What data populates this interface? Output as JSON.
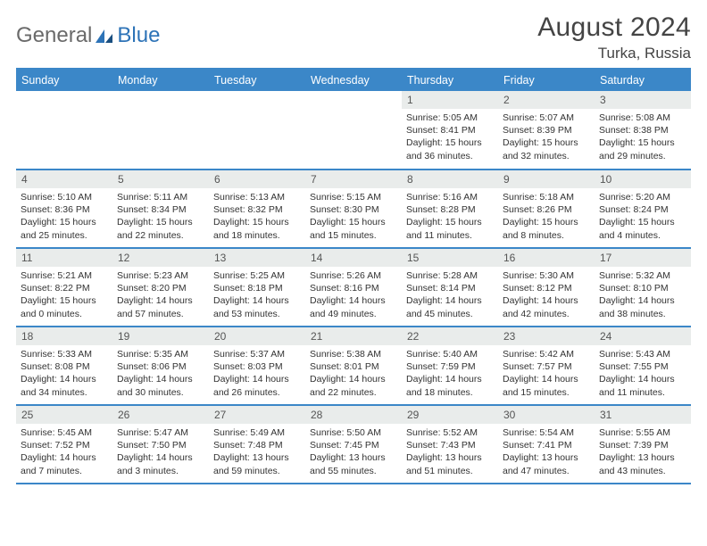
{
  "logo": {
    "text_gen": "General",
    "text_blue": "Blue"
  },
  "header": {
    "title": "August 2024",
    "location": "Turka, Russia"
  },
  "style": {
    "accent_color": "#3b87c8",
    "daybar_bg": "#e9eceb",
    "page_bg": "#ffffff",
    "text_color": "#333333",
    "title_fontsize": 30,
    "location_fontsize": 17,
    "header_fontsize": 12.5,
    "daynum_fontsize": 12,
    "body_fontsize": 10.5
  },
  "weekdays": [
    "Sunday",
    "Monday",
    "Tuesday",
    "Wednesday",
    "Thursday",
    "Friday",
    "Saturday"
  ],
  "weeks": [
    [
      {
        "empty": true
      },
      {
        "empty": true
      },
      {
        "empty": true
      },
      {
        "empty": true
      },
      {
        "num": "1",
        "sunrise": "5:05 AM",
        "sunset": "8:41 PM",
        "daylight": "15 hours and 36 minutes."
      },
      {
        "num": "2",
        "sunrise": "5:07 AM",
        "sunset": "8:39 PM",
        "daylight": "15 hours and 32 minutes."
      },
      {
        "num": "3",
        "sunrise": "5:08 AM",
        "sunset": "8:38 PM",
        "daylight": "15 hours and 29 minutes."
      }
    ],
    [
      {
        "num": "4",
        "sunrise": "5:10 AM",
        "sunset": "8:36 PM",
        "daylight": "15 hours and 25 minutes."
      },
      {
        "num": "5",
        "sunrise": "5:11 AM",
        "sunset": "8:34 PM",
        "daylight": "15 hours and 22 minutes."
      },
      {
        "num": "6",
        "sunrise": "5:13 AM",
        "sunset": "8:32 PM",
        "daylight": "15 hours and 18 minutes."
      },
      {
        "num": "7",
        "sunrise": "5:15 AM",
        "sunset": "8:30 PM",
        "daylight": "15 hours and 15 minutes."
      },
      {
        "num": "8",
        "sunrise": "5:16 AM",
        "sunset": "8:28 PM",
        "daylight": "15 hours and 11 minutes."
      },
      {
        "num": "9",
        "sunrise": "5:18 AM",
        "sunset": "8:26 PM",
        "daylight": "15 hours and 8 minutes."
      },
      {
        "num": "10",
        "sunrise": "5:20 AM",
        "sunset": "8:24 PM",
        "daylight": "15 hours and 4 minutes."
      }
    ],
    [
      {
        "num": "11",
        "sunrise": "5:21 AM",
        "sunset": "8:22 PM",
        "daylight": "15 hours and 0 minutes."
      },
      {
        "num": "12",
        "sunrise": "5:23 AM",
        "sunset": "8:20 PM",
        "daylight": "14 hours and 57 minutes."
      },
      {
        "num": "13",
        "sunrise": "5:25 AM",
        "sunset": "8:18 PM",
        "daylight": "14 hours and 53 minutes."
      },
      {
        "num": "14",
        "sunrise": "5:26 AM",
        "sunset": "8:16 PM",
        "daylight": "14 hours and 49 minutes."
      },
      {
        "num": "15",
        "sunrise": "5:28 AM",
        "sunset": "8:14 PM",
        "daylight": "14 hours and 45 minutes."
      },
      {
        "num": "16",
        "sunrise": "5:30 AM",
        "sunset": "8:12 PM",
        "daylight": "14 hours and 42 minutes."
      },
      {
        "num": "17",
        "sunrise": "5:32 AM",
        "sunset": "8:10 PM",
        "daylight": "14 hours and 38 minutes."
      }
    ],
    [
      {
        "num": "18",
        "sunrise": "5:33 AM",
        "sunset": "8:08 PM",
        "daylight": "14 hours and 34 minutes."
      },
      {
        "num": "19",
        "sunrise": "5:35 AM",
        "sunset": "8:06 PM",
        "daylight": "14 hours and 30 minutes."
      },
      {
        "num": "20",
        "sunrise": "5:37 AM",
        "sunset": "8:03 PM",
        "daylight": "14 hours and 26 minutes."
      },
      {
        "num": "21",
        "sunrise": "5:38 AM",
        "sunset": "8:01 PM",
        "daylight": "14 hours and 22 minutes."
      },
      {
        "num": "22",
        "sunrise": "5:40 AM",
        "sunset": "7:59 PM",
        "daylight": "14 hours and 18 minutes."
      },
      {
        "num": "23",
        "sunrise": "5:42 AM",
        "sunset": "7:57 PM",
        "daylight": "14 hours and 15 minutes."
      },
      {
        "num": "24",
        "sunrise": "5:43 AM",
        "sunset": "7:55 PM",
        "daylight": "14 hours and 11 minutes."
      }
    ],
    [
      {
        "num": "25",
        "sunrise": "5:45 AM",
        "sunset": "7:52 PM",
        "daylight": "14 hours and 7 minutes."
      },
      {
        "num": "26",
        "sunrise": "5:47 AM",
        "sunset": "7:50 PM",
        "daylight": "14 hours and 3 minutes."
      },
      {
        "num": "27",
        "sunrise": "5:49 AM",
        "sunset": "7:48 PM",
        "daylight": "13 hours and 59 minutes."
      },
      {
        "num": "28",
        "sunrise": "5:50 AM",
        "sunset": "7:45 PM",
        "daylight": "13 hours and 55 minutes."
      },
      {
        "num": "29",
        "sunrise": "5:52 AM",
        "sunset": "7:43 PM",
        "daylight": "13 hours and 51 minutes."
      },
      {
        "num": "30",
        "sunrise": "5:54 AM",
        "sunset": "7:41 PM",
        "daylight": "13 hours and 47 minutes."
      },
      {
        "num": "31",
        "sunrise": "5:55 AM",
        "sunset": "7:39 PM",
        "daylight": "13 hours and 43 minutes."
      }
    ]
  ]
}
